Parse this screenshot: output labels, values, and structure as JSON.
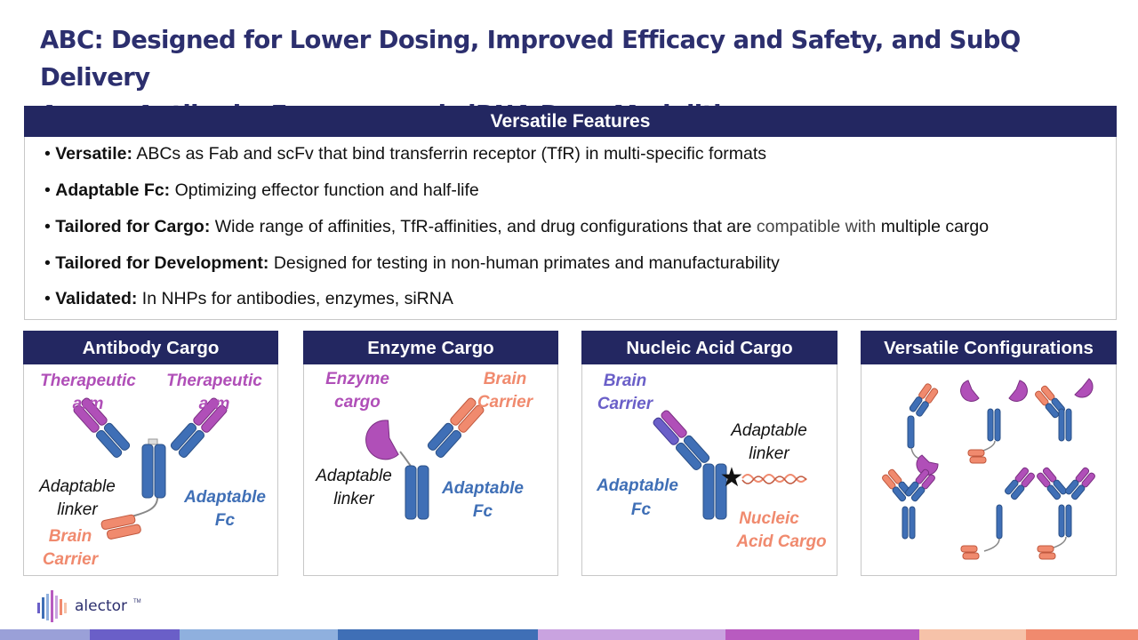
{
  "title": {
    "line1": "ABC: Designed for Lower Dosing, Improved Efficacy and Safety, and SubQ Delivery",
    "line2": "Across Antibody, Enzymes and siRNA Drug Modalities"
  },
  "features": {
    "header": "Versatile Features",
    "bullets": [
      {
        "bold": "Versatile:",
        "text": " ABCs as Fab and scFv that bind transferrin receptor (TfR) in multi-specific formats"
      },
      {
        "bold": "Adaptable Fc:",
        "text": " Optimizing effector function and half-life"
      },
      {
        "bold": "Tailored for Cargo:",
        "text": " Wide range of affinities, TfR-affinities, and drug configurations that are ",
        "muted": "compatible with",
        "tail": " multiple cargo"
      },
      {
        "bold": "Tailored for Development:",
        "text": " Designed for testing in non-human primates and manufacturability"
      },
      {
        "bold": "Validated:",
        "text": " In NHPs for antibodies, enzymes, siRNA"
      }
    ]
  },
  "panels": {
    "antibody": {
      "title": "Antibody Cargo",
      "therapeutic_l1": "Therapeutic",
      "therapeutic_l2": "arm",
      "linker_l1": "Adaptable",
      "linker_l2": "linker",
      "fc_l1": "Adaptable",
      "fc_l2": "Fc",
      "carrier_l1": "Brain",
      "carrier_l2": "Carrier"
    },
    "enzyme": {
      "title": "Enzyme Cargo",
      "cargo_l1": "Enzyme",
      "cargo_l2": "cargo",
      "carrier_l1": "Brain",
      "carrier_l2": "Carrier",
      "linker_l1": "Adaptable",
      "linker_l2": "linker",
      "fc_l1": "Adaptable",
      "fc_l2": "Fc"
    },
    "nucleic": {
      "title": "Nucleic Acid Cargo",
      "carrier_l1": "Brain",
      "carrier_l2": "Carrier",
      "linker_l1": "Adaptable",
      "linker_l2": "linker",
      "fc_l1": "Adaptable",
      "fc_l2": "Fc",
      "cargo_l1": "Nucleic",
      "cargo_l2": "Acid Cargo"
    },
    "configs": {
      "title": "Versatile Configurations"
    }
  },
  "colors": {
    "navy": "#232761",
    "blue": "#3f6fb6",
    "purple": "#b04fb8",
    "salmon": "#f08a6e",
    "label_purple": "#b04fb8",
    "label_blue": "#3f6fb6",
    "label_salmon": "#f08a6e",
    "label_indigo": "#6a5fc8"
  },
  "logo": {
    "name": "alector",
    "mark": "TM"
  },
  "footer_bar_colors": [
    "#9aa0d8",
    "#6a5fc8",
    "#8fb0de",
    "#3f6fb6",
    "#c9a3e0",
    "#b85bc0",
    "#f6c2a9",
    "#f08a6e"
  ]
}
